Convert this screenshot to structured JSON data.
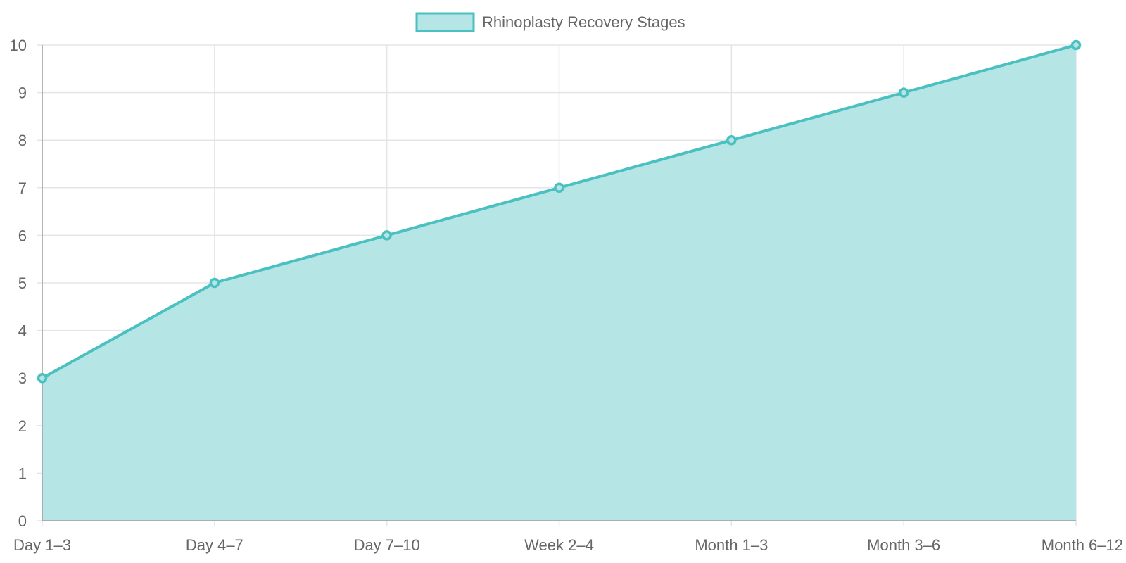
{
  "legend": {
    "label": "Rhinoplasty Recovery Stages"
  },
  "colors": {
    "line": "#4bc0c0",
    "fill": "#b5e5e5",
    "grid": "#e5e5e5",
    "axis": "#a0a0a0",
    "text": "#666666"
  },
  "chart_data": {
    "type": "area",
    "title": "",
    "xlabel": "",
    "ylabel": "",
    "categories": [
      "Day 1–3",
      "Day 4–7",
      "Day 7–10",
      "Week 2–4",
      "Month 1–3",
      "Month 3–6",
      "Month 6–12"
    ],
    "series": [
      {
        "name": "Rhinoplasty Recovery Stages",
        "values": [
          3,
          5,
          6,
          7,
          8,
          9,
          10
        ]
      }
    ],
    "ylim": [
      0,
      10
    ],
    "yticks": [
      0,
      1,
      2,
      3,
      4,
      5,
      6,
      7,
      8,
      9,
      10
    ],
    "grid": true,
    "legend_position": "top"
  }
}
